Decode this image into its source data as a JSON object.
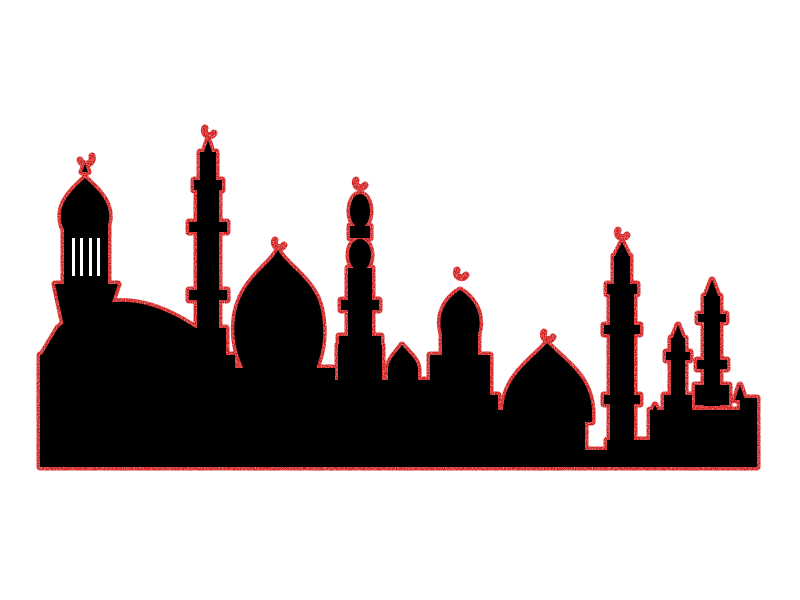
{
  "colors": {
    "background": "#ffffff",
    "silhouette": "#000000",
    "outline": "#d01010"
  }
}
